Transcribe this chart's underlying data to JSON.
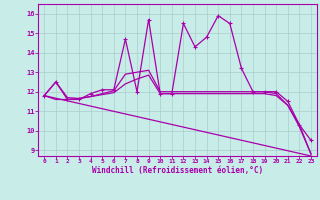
{
  "background_color": "#c8ece8",
  "grid_color": "#aacccc",
  "line_color": "#aa00aa",
  "xlabel": "Windchill (Refroidissement éolien,°C)",
  "ylabel_ticks": [
    9,
    10,
    11,
    12,
    13,
    14,
    15,
    16
  ],
  "xlabel_ticks": [
    0,
    1,
    2,
    3,
    4,
    5,
    6,
    7,
    8,
    9,
    10,
    11,
    12,
    13,
    14,
    15,
    16,
    17,
    18,
    19,
    20,
    21,
    22,
    23
  ],
  "xlim": [
    -0.5,
    23.5
  ],
  "ylim": [
    8.7,
    16.5
  ],
  "series1_x": [
    0,
    1,
    2,
    3,
    4,
    5,
    6,
    7,
    8,
    9,
    10,
    11,
    12,
    13,
    14,
    15,
    16,
    17,
    18,
    19,
    20,
    21,
    22,
    23
  ],
  "series1_y": [
    11.8,
    12.5,
    11.6,
    11.6,
    11.9,
    12.1,
    12.1,
    14.7,
    12.0,
    15.7,
    11.9,
    11.9,
    15.5,
    14.3,
    14.8,
    15.9,
    15.5,
    13.2,
    12.0,
    12.0,
    12.0,
    11.5,
    10.3,
    9.5
  ],
  "series2_x": [
    0,
    1,
    2,
    3,
    4,
    5,
    6,
    7,
    8,
    9,
    10,
    11,
    12,
    13,
    14,
    15,
    16,
    17,
    18,
    19,
    20,
    21,
    22,
    23
  ],
  "series2_y": [
    11.8,
    12.5,
    11.7,
    11.65,
    11.75,
    11.9,
    12.05,
    12.9,
    13.0,
    13.1,
    12.0,
    12.0,
    12.0,
    12.0,
    12.0,
    12.0,
    12.0,
    12.0,
    12.0,
    12.0,
    11.9,
    11.3,
    10.3,
    8.8
  ],
  "series3_x": [
    0,
    1,
    2,
    3,
    4,
    5,
    6,
    7,
    8,
    9,
    10,
    11,
    12,
    13,
    14,
    15,
    16,
    17,
    18,
    19,
    20,
    21,
    22,
    23
  ],
  "series3_y": [
    11.8,
    11.6,
    11.6,
    11.65,
    11.75,
    11.85,
    11.95,
    12.4,
    12.65,
    12.85,
    11.9,
    11.9,
    11.9,
    11.9,
    11.9,
    11.9,
    11.9,
    11.9,
    11.9,
    11.9,
    11.8,
    11.3,
    10.2,
    8.8
  ],
  "series4_x": [
    0,
    23
  ],
  "series4_y": [
    11.8,
    8.7
  ],
  "lw": 0.9,
  "marker_size": 3.5
}
